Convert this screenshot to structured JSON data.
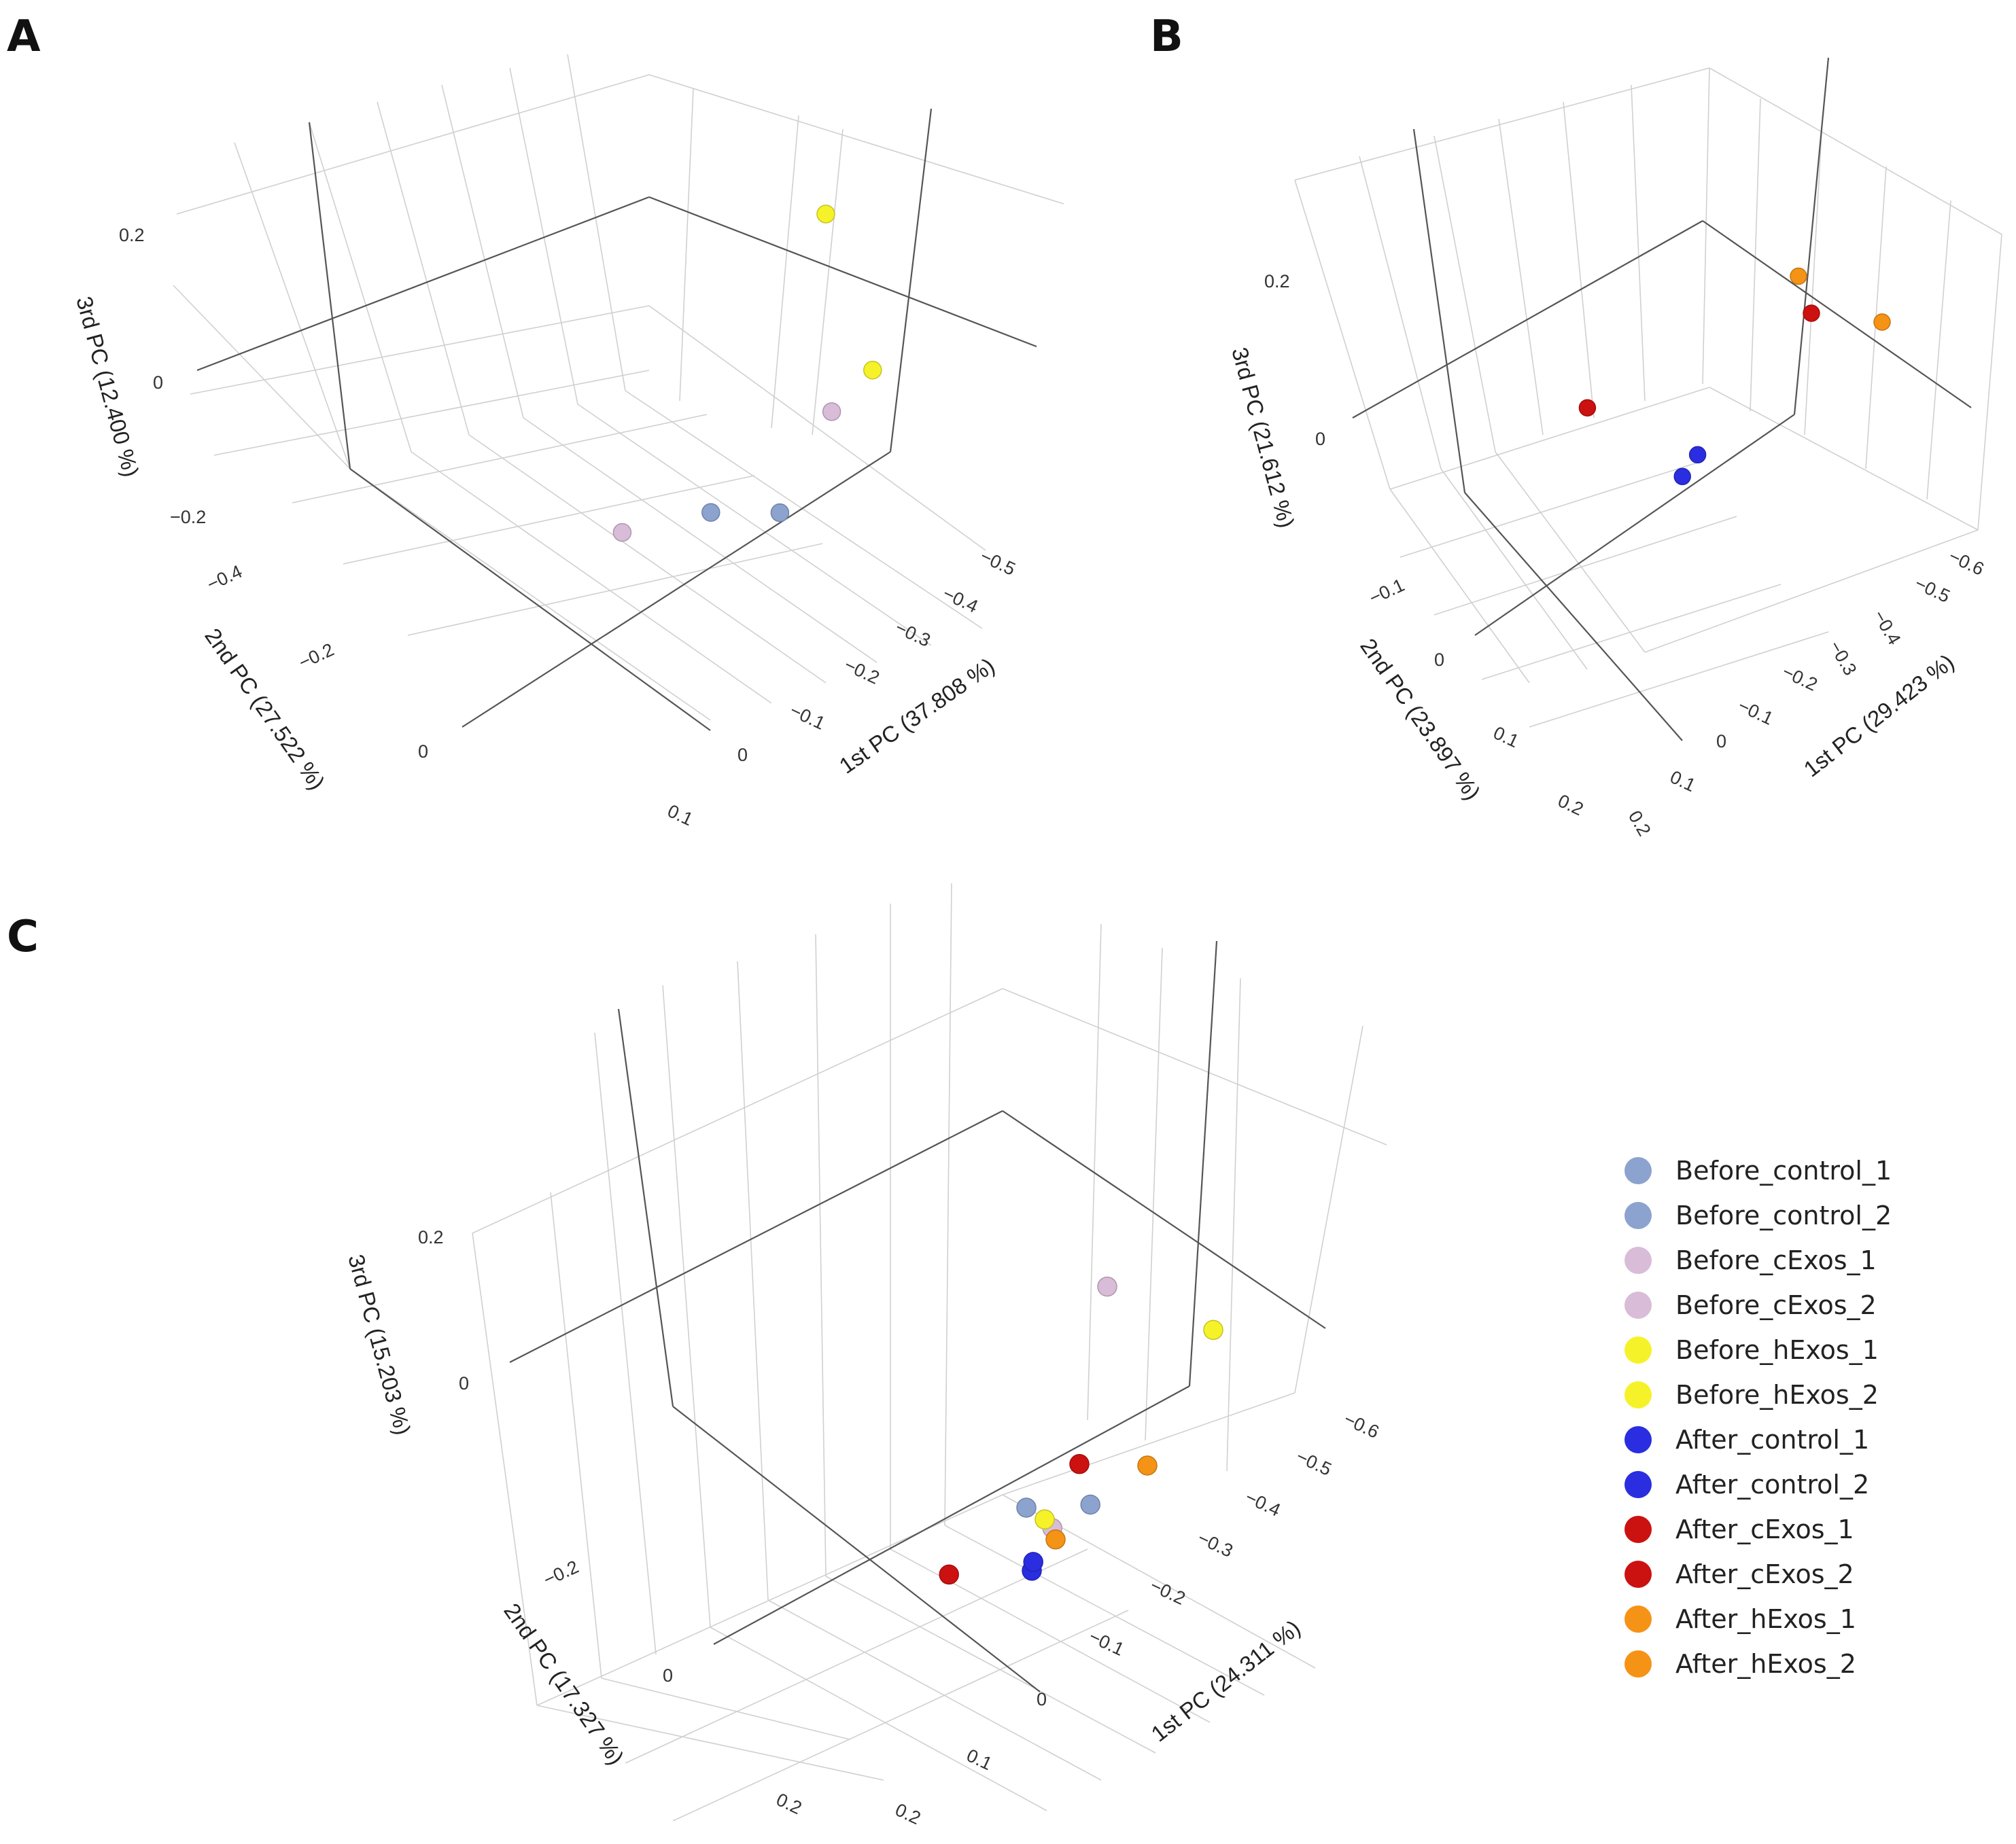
{
  "legend": [
    {
      "label": "Before_control_1",
      "color": "#8ca3cf"
    },
    {
      "label": "Before_control_2",
      "color": "#8ca3cf"
    },
    {
      "label": "Before_cExos_1",
      "color": "#d9bcd8"
    },
    {
      "label": "Before_cExos_2",
      "color": "#d9bcd8"
    },
    {
      "label": "Before_hExos_1",
      "color": "#f6f22a"
    },
    {
      "label": "Before_hExos_2",
      "color": "#f6f22a"
    },
    {
      "label": "After_control_1",
      "color": "#2a2ee0"
    },
    {
      "label": "After_control_2",
      "color": "#2a2ee0"
    },
    {
      "label": "After_cExos_1",
      "color": "#cc1111"
    },
    {
      "label": "After_cExos_2",
      "color": "#cc1111"
    },
    {
      "label": "After_hExos_1",
      "color": "#f59316"
    },
    {
      "label": "After_hExos_2",
      "color": "#f59316"
    }
  ],
  "chart_data": [
    {
      "panel": "A",
      "type": "scatter",
      "x_axis": {
        "title": "1st PC (37.808 %)",
        "ticks": [
          "−0.5",
          "−0.4",
          "−0.3",
          "−0.2",
          "−0.1",
          "0",
          "0.1"
        ]
      },
      "y_axis": {
        "title": "2nd PC (27.522 %)",
        "ticks": [
          "−0.4",
          "−0.2",
          "0"
        ]
      },
      "z_axis": {
        "title": "3rd PC (12.400 %)",
        "ticks": [
          "0.2",
          "0",
          "−0.2"
        ]
      },
      "points": [
        {
          "sample": "Before_control_1",
          "pc1": 0.04,
          "pc2": -0.18,
          "pc3": -0.12
        },
        {
          "sample": "Before_control_2",
          "pc1": -0.06,
          "pc2": -0.26,
          "pc3": -0.11
        },
        {
          "sample": "Before_cExos_1",
          "pc1": 0.02,
          "pc2": -0.45,
          "pc3": 0.14
        },
        {
          "sample": "Before_cExos_2",
          "pc1": 0.1,
          "pc2": -0.02,
          "pc3": -0.2
        },
        {
          "sample": "Before_hExos_1",
          "pc1": -0.37,
          "pc2": -0.22,
          "pc3": 0.05
        },
        {
          "sample": "Before_hExos_2",
          "pc1": -0.5,
          "pc2": 0.0,
          "pc3": 0.2
        }
      ]
    },
    {
      "panel": "B",
      "type": "scatter",
      "x_axis": {
        "title": "1st PC (29.423 %)",
        "ticks": [
          "−0.6",
          "−0.5",
          "−0.4",
          "−0.3",
          "−0.2",
          "−0.1",
          "0",
          "0.1",
          "0.2"
        ]
      },
      "y_axis": {
        "title": "2nd PC (23.897 %)",
        "ticks": [
          "−0.1",
          "0",
          "0.1",
          "0.2"
        ]
      },
      "z_axis": {
        "title": "3rd PC (21.612 %)",
        "ticks": [
          "0.2",
          "0"
        ]
      },
      "points": [
        {
          "sample": "After_control_1",
          "pc1": 0.18,
          "pc2": -0.12,
          "pc3": 0.0
        },
        {
          "sample": "After_control_2",
          "pc1": 0.18,
          "pc2": -0.08,
          "pc3": -0.05
        },
        {
          "sample": "After_cExos_1",
          "pc1": -0.2,
          "pc2": -0.1,
          "pc3": 0.15
        },
        {
          "sample": "After_cExos_2",
          "pc1": 0.12,
          "pc2": 0.22,
          "pc3": -0.05
        },
        {
          "sample": "After_hExos_1",
          "pc1": -0.1,
          "pc2": -0.15,
          "pc3": 0.25
        },
        {
          "sample": "After_hExos_2",
          "pc1": -0.6,
          "pc2": 0.05,
          "pc3": 0.0
        }
      ]
    },
    {
      "panel": "C",
      "type": "scatter",
      "x_axis": {
        "title": "1st PC (24.311 %)",
        "ticks": [
          "−0.6",
          "−0.5",
          "−0.4",
          "−0.3",
          "−0.2",
          "−0.1",
          "0",
          "0.1",
          "0.2"
        ]
      },
      "y_axis": {
        "title": "2nd PC (17.327 %)",
        "ticks": [
          "−0.2",
          "0",
          "0.2"
        ]
      },
      "z_axis": {
        "title": "3rd PC (15.203 %)",
        "ticks": [
          "0.2",
          "0"
        ]
      },
      "points": [
        {
          "sample": "Before_control_1",
          "pc1": 0.0,
          "pc2": -0.05,
          "pc3": 0.0
        },
        {
          "sample": "Before_control_2",
          "pc1": 0.02,
          "pc2": -0.2,
          "pc3": 0.05
        },
        {
          "sample": "Before_cExos_1",
          "pc1": 0.0,
          "pc2": -0.22,
          "pc3": 0.3
        },
        {
          "sample": "Before_cExos_2",
          "pc1": 0.02,
          "pc2": -0.12,
          "pc3": 0.0
        },
        {
          "sample": "Before_hExos_1",
          "pc1": -0.05,
          "pc2": -0.05,
          "pc3": -0.02
        },
        {
          "sample": "Before_hExos_2",
          "pc1": -0.6,
          "pc2": 0.02,
          "pc3": 0.1
        },
        {
          "sample": "After_control_1",
          "pc1": 0.05,
          "pc2": -0.1,
          "pc3": -0.05
        },
        {
          "sample": "After_control_2",
          "pc1": 0.02,
          "pc2": -0.08,
          "pc3": -0.05
        },
        {
          "sample": "After_cExos_1",
          "pc1": 0.05,
          "pc2": -0.2,
          "pc3": 0.1
        },
        {
          "sample": "After_cExos_2",
          "pc1": 0.12,
          "pc2": 0.02,
          "pc3": -0.08
        },
        {
          "sample": "After_hExos_1",
          "pc1": -0.2,
          "pc2": -0.15,
          "pc3": 0.05
        },
        {
          "sample": "After_hExos_2",
          "pc1": 0.05,
          "pc2": -0.15,
          "pc3": 0.0
        }
      ]
    }
  ]
}
